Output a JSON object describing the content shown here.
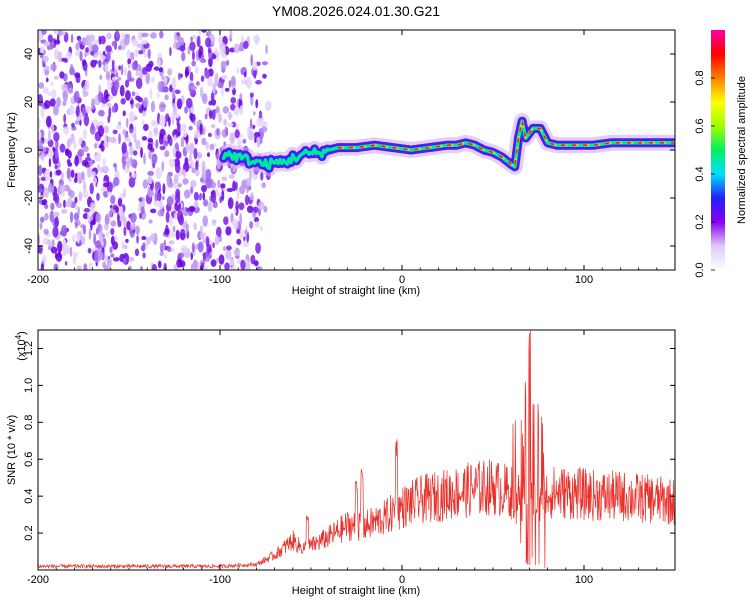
{
  "title": "YM08.2026.024.01.30.G21",
  "chart_data": [
    {
      "type": "heatmap",
      "xlabel": "Height of straight line (km)",
      "ylabel": "Frequency (Hz)",
      "xlim": [
        -200,
        150
      ],
      "ylim": [
        -50,
        50
      ],
      "xticks": [
        -200,
        -100,
        0,
        100
      ],
      "yticks": [
        -40,
        -20,
        0,
        20,
        40
      ],
      "xtick_labels": [
        "-200",
        "-100",
        "0",
        "100"
      ],
      "ytick_labels": [
        "-40",
        "-20",
        "0",
        "20",
        "40"
      ],
      "colorbar": {
        "label": "Normalized spectral amplitude",
        "range": [
          0,
          1
        ],
        "ticks": [
          "0.0",
          "0.2",
          "0.4",
          "0.6",
          "0.8"
        ],
        "colors": [
          "#ffffff",
          "#e0c8f8",
          "#8800ee",
          "#2020ff",
          "#00e0ff",
          "#00f060",
          "#a0ff00",
          "#ffff00",
          "#ff8000",
          "#ff0000",
          "#ff00a0"
        ]
      },
      "noise_region": {
        "x": [
          -200,
          -75
        ],
        "y": [
          -50,
          50
        ]
      },
      "ridge": [
        {
          "x": -95,
          "y": -2
        },
        {
          "x": -85,
          "y": -4
        },
        {
          "x": -75,
          "y": -6
        },
        {
          "x": -65,
          "y": -5
        },
        {
          "x": -55,
          "y": -2
        },
        {
          "x": -45,
          "y": -1
        },
        {
          "x": -35,
          "y": 1
        },
        {
          "x": -25,
          "y": 1
        },
        {
          "x": -15,
          "y": 2
        },
        {
          "x": -5,
          "y": 1
        },
        {
          "x": 5,
          "y": 0
        },
        {
          "x": 15,
          "y": 1
        },
        {
          "x": 25,
          "y": 2
        },
        {
          "x": 30,
          "y": 2
        },
        {
          "x": 35,
          "y": 3
        },
        {
          "x": 40,
          "y": 2
        },
        {
          "x": 45,
          "y": 0
        },
        {
          "x": 50,
          "y": -1
        },
        {
          "x": 55,
          "y": -3
        },
        {
          "x": 60,
          "y": -6
        },
        {
          "x": 62,
          "y": -7
        },
        {
          "x": 64,
          "y": 5
        },
        {
          "x": 66,
          "y": 12
        },
        {
          "x": 68,
          "y": 5
        },
        {
          "x": 72,
          "y": 9
        },
        {
          "x": 76,
          "y": 9
        },
        {
          "x": 80,
          "y": 3
        },
        {
          "x": 85,
          "y": 2
        },
        {
          "x": 95,
          "y": 2
        },
        {
          "x": 105,
          "y": 2
        },
        {
          "x": 115,
          "y": 3
        },
        {
          "x": 125,
          "y": 3
        },
        {
          "x": 135,
          "y": 3
        },
        {
          "x": 150,
          "y": 3
        }
      ]
    },
    {
      "type": "line",
      "xlabel": "Height of straight line (km)",
      "ylabel": "SNR (10 * v/v)",
      "y_multiplier": "(x10",
      "y_multiplier_exp": "4",
      "y_multiplier_close": ")",
      "xlim": [
        -200,
        150
      ],
      "ylim": [
        0,
        1.3
      ],
      "xticks": [
        -200,
        -100,
        0,
        100
      ],
      "yticks": [
        0.2,
        0.4,
        0.6,
        0.8,
        1.0,
        1.2
      ],
      "xtick_labels": [
        "-200",
        "-100",
        "0",
        "100"
      ],
      "ytick_labels": [
        "0.2",
        "0.4",
        "0.6",
        "0.8",
        "1.0",
        "1.2"
      ],
      "color": "#e8302a",
      "envelope": [
        {
          "x": -200,
          "y": 0.02
        },
        {
          "x": -100,
          "y": 0.02
        },
        {
          "x": -80,
          "y": 0.03
        },
        {
          "x": -70,
          "y": 0.08
        },
        {
          "x": -60,
          "y": 0.16
        },
        {
          "x": -55,
          "y": 0.12
        },
        {
          "x": -50,
          "y": 0.13
        },
        {
          "x": -40,
          "y": 0.18
        },
        {
          "x": -30,
          "y": 0.24
        },
        {
          "x": -20,
          "y": 0.24
        },
        {
          "x": -10,
          "y": 0.28
        },
        {
          "x": 0,
          "y": 0.34
        },
        {
          "x": 10,
          "y": 0.38
        },
        {
          "x": 20,
          "y": 0.4
        },
        {
          "x": 30,
          "y": 0.42
        },
        {
          "x": 40,
          "y": 0.44
        },
        {
          "x": 50,
          "y": 0.45
        },
        {
          "x": 60,
          "y": 0.42
        },
        {
          "x": 70,
          "y": 0.38
        },
        {
          "x": 80,
          "y": 0.42
        },
        {
          "x": 90,
          "y": 0.42
        },
        {
          "x": 100,
          "y": 0.41
        },
        {
          "x": 110,
          "y": 0.4
        },
        {
          "x": 120,
          "y": 0.4
        },
        {
          "x": 130,
          "y": 0.39
        },
        {
          "x": 140,
          "y": 0.38
        },
        {
          "x": 150,
          "y": 0.37
        }
      ],
      "spikes": [
        {
          "x": -52,
          "y": 0.3
        },
        {
          "x": -25,
          "y": 0.5
        },
        {
          "x": -22,
          "y": 0.57
        },
        {
          "x": -3,
          "y": 0.72
        },
        {
          "x": 68,
          "y": 1.02
        },
        {
          "x": 70,
          "y": 1.3
        },
        {
          "x": 72,
          "y": 0.9
        },
        {
          "x": 75,
          "y": 0.92
        }
      ]
    }
  ]
}
